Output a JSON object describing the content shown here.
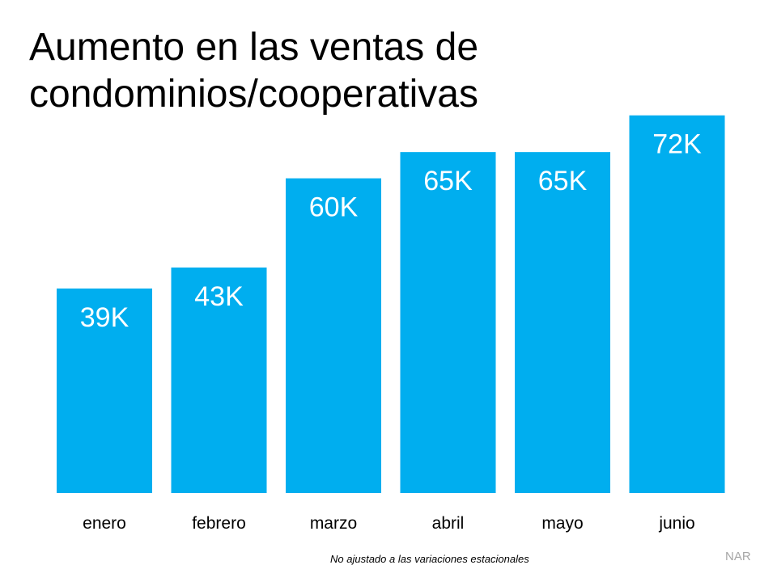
{
  "chart_data": {
    "type": "bar",
    "title": "Aumento en las ventas de condominios/cooperativas",
    "categories": [
      "enero",
      "febrero",
      "marzo",
      "abril",
      "mayo",
      "junio"
    ],
    "values": [
      39,
      43,
      60,
      65,
      65,
      72
    ],
    "data_labels": [
      "39K",
      "43K",
      "60K",
      "65K",
      "65K",
      "72K"
    ],
    "xlabel": "",
    "ylabel": "",
    "ylim": [
      0,
      94
    ],
    "grid": false,
    "bar_color": "#00AEEF",
    "label_color": "#FFFFFF"
  },
  "footnote": "No ajustado a las variaciones estacionales",
  "source": "NAR"
}
